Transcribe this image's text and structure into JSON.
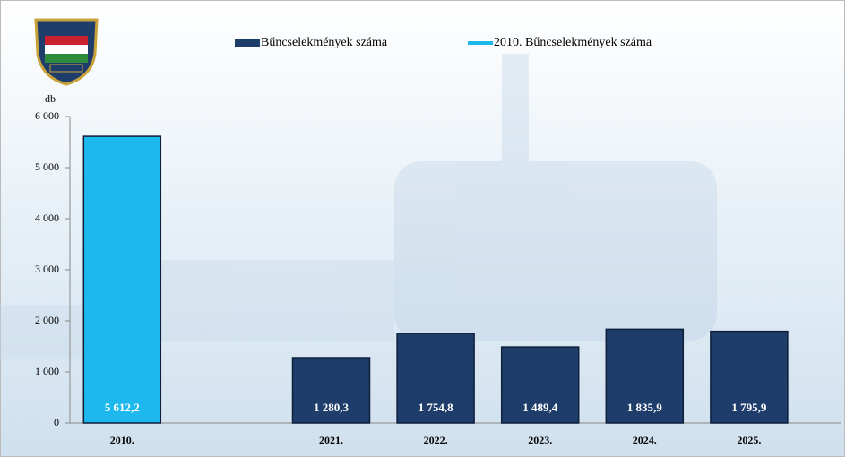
{
  "chart_data": {
    "type": "bar",
    "y_axis_label": "db",
    "categories": [
      "2010.",
      null,
      "2021.",
      "2022.",
      "2023.",
      "2024.",
      "2025."
    ],
    "series": [
      {
        "name": "Bűncselekmények száma",
        "color": "#1f3d6b",
        "values": [
          null,
          null,
          1280.3,
          1754.8,
          1489.4,
          1835.9,
          1795.9
        ],
        "value_labels": [
          null,
          null,
          "1 280,3",
          "1 754,8",
          "1 489,4",
          "1 835,9",
          "1 795,9"
        ]
      },
      {
        "name": "2010. Bűncselekmények száma",
        "color": "#1cb8ee",
        "values": [
          5612.2,
          null,
          null,
          null,
          null,
          null,
          null
        ],
        "value_labels": [
          "5 612,2",
          null,
          null,
          null,
          null,
          null,
          null
        ]
      }
    ],
    "ylim": [
      0,
      6000
    ],
    "yticks": [
      0,
      {
        "value": 1000,
        "label": "1 000"
      },
      {
        "value": 2000,
        "label": "2 000"
      },
      {
        "value": 3000,
        "label": "3 000"
      },
      {
        "value": 4000,
        "label": "4 000"
      },
      {
        "value": 5000,
        "label": "5 000"
      },
      {
        "value": 6000,
        "label": "6 000"
      }
    ]
  }
}
